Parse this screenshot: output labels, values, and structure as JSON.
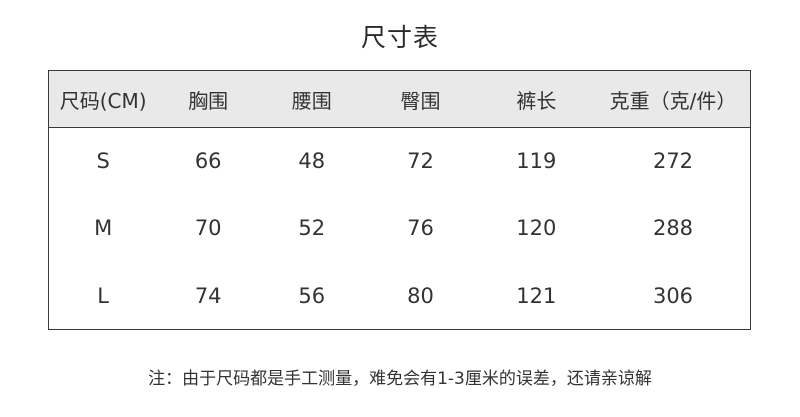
{
  "chart_data": {
    "type": "table",
    "title": "尺寸表",
    "columns": [
      "尺码(CM)",
      "胸围",
      "腰围",
      "臀围",
      "裤长",
      "克重（克/件）"
    ],
    "rows": [
      [
        "S",
        66,
        48,
        72,
        119,
        272
      ],
      [
        "M",
        70,
        52,
        76,
        120,
        288
      ],
      [
        "L",
        74,
        56,
        80,
        121,
        306
      ]
    ],
    "note": "注：由于尺码都是手工测量，难免会有1-3厘米的误差，还请亲谅解"
  },
  "colors": {
    "header_bg": "#e9e9e9",
    "border": "#3a3a3a",
    "text": "#333333",
    "background": "#ffffff"
  }
}
